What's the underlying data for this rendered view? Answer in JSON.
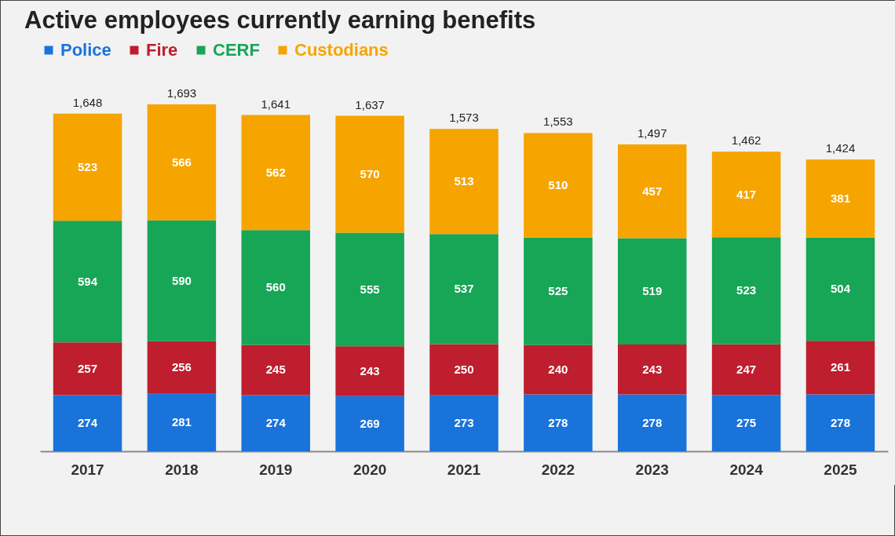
{
  "chart_data": {
    "type": "bar",
    "title": "Active employees currently earning benefits",
    "categories": [
      "2017",
      "2018",
      "2019",
      "2020",
      "2021",
      "2022",
      "2023",
      "2024",
      "2025"
    ],
    "stacked": true,
    "data_labels": true,
    "legend": "top left",
    "grid": false,
    "series": [
      {
        "name": "Police",
        "color": "#1a73d9",
        "values": [
          274,
          281,
          274,
          269,
          273,
          278,
          278,
          275,
          278
        ]
      },
      {
        "name": "Fire",
        "color": "#be1e2d",
        "values": [
          257,
          256,
          245,
          243,
          250,
          240,
          243,
          247,
          261
        ]
      },
      {
        "name": "CERF",
        "color": "#17a556",
        "values": [
          594,
          590,
          560,
          555,
          537,
          525,
          519,
          523,
          504
        ]
      },
      {
        "name": "Custodians",
        "color": "#f6a400",
        "values": [
          523,
          566,
          562,
          570,
          513,
          510,
          457,
          417,
          381
        ]
      }
    ],
    "totals": [
      "1,648",
      "1,693",
      "1,641",
      "1,637",
      "1,573",
      "1,553",
      "1,497",
      "1,462",
      "1,424"
    ]
  }
}
